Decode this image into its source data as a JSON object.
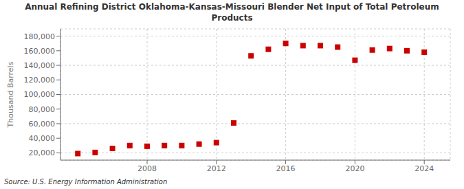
{
  "chart_data": {
    "type": "scatter",
    "title": "Annual Refining District Oklahoma-Kansas-Missouri Blender Net Input of Total Petroleum\nProducts",
    "ylabel": "Thousand Barrels",
    "annotations": [
      "Source: U.S. Energy Information Administration"
    ],
    "x": [
      2004,
      2005,
      2006,
      2007,
      2008,
      2009,
      2010,
      2011,
      2012,
      2013,
      2014,
      2015,
      2016,
      2017,
      2018,
      2019,
      2020,
      2021,
      2022,
      2023,
      2024
    ],
    "values": [
      19000,
      20500,
      26000,
      30000,
      29000,
      30000,
      30000,
      32000,
      34000,
      61000,
      153000,
      162000,
      170000,
      167000,
      167000,
      165000,
      147000,
      161000,
      163000,
      160000,
      158000
    ],
    "color": "#cc0000",
    "marker": "square",
    "xlim": [
      2003,
      2025.5
    ],
    "xticks": [
      2008,
      2012,
      2016,
      2020,
      2024
    ],
    "ylim": [
      10000,
      190000
    ],
    "yticks": [
      {
        "value": 20000,
        "label": "20,000"
      },
      {
        "value": 40000,
        "label": "40,000"
      },
      {
        "value": 60000,
        "label": "60,000"
      },
      {
        "value": 80000,
        "label": "80,000"
      },
      {
        "value": 100000,
        "label": "100,000"
      },
      {
        "value": 120000,
        "label": "120,000"
      },
      {
        "value": 140000,
        "label": "140,000"
      },
      {
        "value": 160000,
        "label": "160,000"
      },
      {
        "value": 180000,
        "label": "180,000"
      }
    ],
    "grid": true
  }
}
